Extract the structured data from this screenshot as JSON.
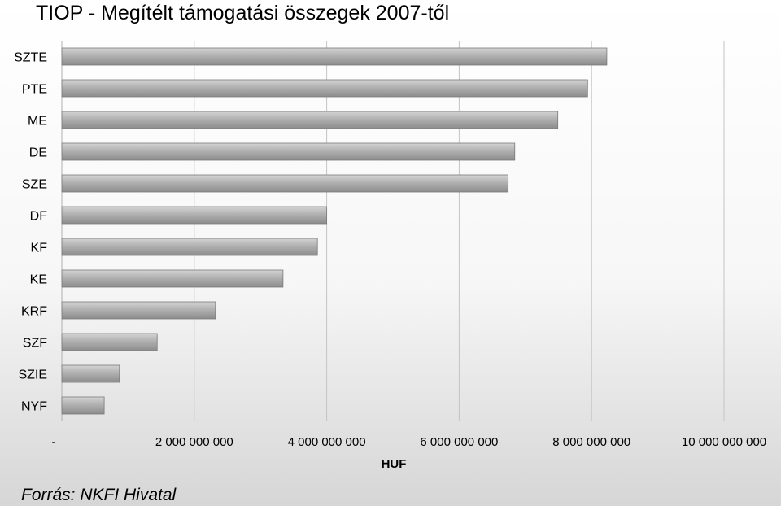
{
  "chart_data": {
    "type": "bar",
    "orientation": "horizontal",
    "title": "TIOP - Megítélt támogatási összegek 2007-től",
    "xlabel": "HUF",
    "ylabel": "",
    "source": "Forrás: NKFI Hivatal",
    "categories": [
      "SZTE",
      "PTE",
      "ME",
      "DE",
      "SZE",
      "DF",
      "KF",
      "KE",
      "KRF",
      "SZF",
      "SZIE",
      "NYF"
    ],
    "values": [
      8230000000,
      7940000000,
      7490000000,
      6840000000,
      6740000000,
      4000000000,
      3860000000,
      3340000000,
      2320000000,
      1440000000,
      870000000,
      640000000
    ],
    "xlim": [
      0,
      10000000000
    ],
    "xticks": [
      0,
      2000000000,
      4000000000,
      6000000000,
      8000000000,
      10000000000
    ],
    "xtick_labels": [
      "-",
      "2 000 000 000",
      "4 000 000 000",
      "6 000 000 000",
      "8 000 000 000",
      "10 000 000 000"
    ],
    "grid": true,
    "legend": "none",
    "bar_color": "#a6a6a6"
  }
}
